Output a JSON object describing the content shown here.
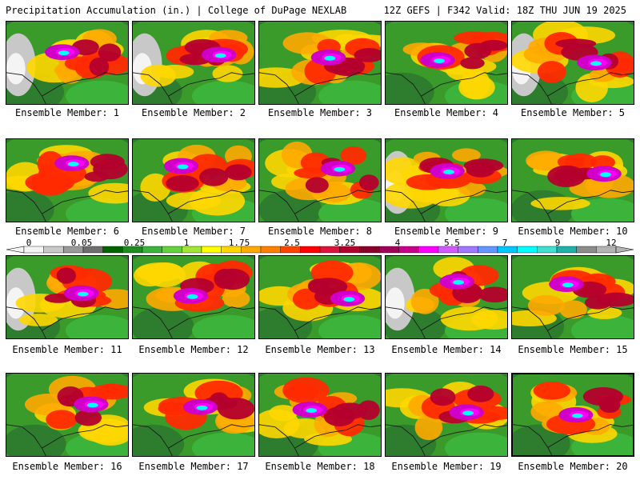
{
  "header": {
    "left": "Precipitation Accumulation (in.) | College of DuPage NEXLAB",
    "right": "12Z GEFS | F342 Valid: 18Z THU JUN 19 2025"
  },
  "panel_caption_prefix": "Ensemble Member: ",
  "members": [
    "1",
    "2",
    "3",
    "4",
    "5",
    "6",
    "7",
    "8",
    "9",
    "10",
    "11",
    "12",
    "13",
    "14",
    "15",
    "16",
    "17",
    "18",
    "19",
    "20"
  ],
  "colorbar": {
    "ticks": [
      "0",
      "0.05",
      "0.25",
      "1",
      "1.75",
      "2.5",
      "3.25",
      "4",
      "5.5",
      "7",
      "9",
      "12"
    ],
    "colors": [
      "#f4f4f4",
      "#c8c8c8",
      "#9a9a9a",
      "#6e6e6e",
      "#006400",
      "#1e8c1e",
      "#3cb43c",
      "#64d23c",
      "#a0e632",
      "#ffff00",
      "#ffd700",
      "#ffaa00",
      "#ff7f00",
      "#ff4500",
      "#ff0000",
      "#dc143c",
      "#b4002d",
      "#8b0028",
      "#a0005a",
      "#c8008c",
      "#ff00ff",
      "#d25aff",
      "#a078ff",
      "#6496ff",
      "#00c8ff",
      "#00ffff",
      "#40e0d0",
      "#20b2aa",
      "#8c8c8c",
      "#b4b4b4"
    ]
  }
}
